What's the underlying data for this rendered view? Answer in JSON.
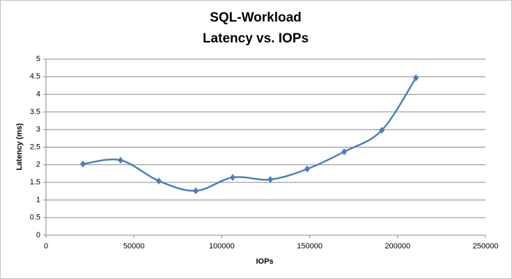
{
  "chart_data": {
    "type": "scatter-smooth",
    "title": "SQL-Workload",
    "subtitle": "Latency vs. IOPs",
    "x_label": "IOPs",
    "y_label": "Latency (ms)",
    "series": [
      {
        "name": "Latency",
        "color": "#4a7ebb",
        "x": [
          21000,
          42400,
          64200,
          85200,
          106200,
          127600,
          148600,
          169600,
          191000,
          210400
        ],
        "values": [
          2.02,
          2.13,
          1.54,
          1.26,
          1.64,
          1.58,
          1.88,
          2.37,
          2.98,
          4.47
        ]
      }
    ],
    "xlim": [
      0,
      250000
    ],
    "xticks": [
      0,
      50000,
      100000,
      150000,
      200000,
      250000
    ],
    "ylim": [
      0,
      5
    ],
    "yticks": [
      0,
      0.5,
      1,
      1.5,
      2,
      2.5,
      3,
      3.5,
      4,
      4.5,
      5
    ],
    "grid": true
  }
}
